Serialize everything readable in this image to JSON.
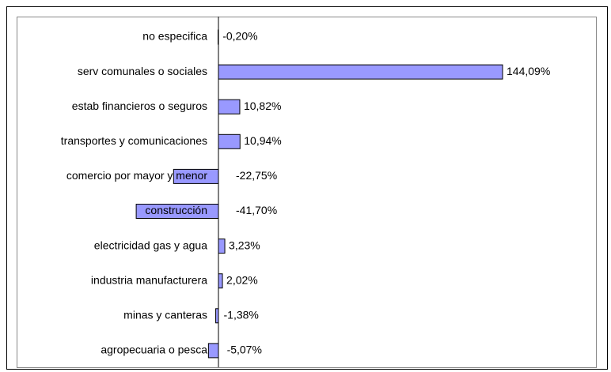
{
  "chart_data": {
    "type": "bar",
    "orientation": "horizontal",
    "categories": [
      "no especifica",
      "serv comunales o sociales",
      "estab financieros o seguros",
      "transportes y comunicaciones",
      "comercio por mayor y menor",
      "construcción",
      "electricidad gas y agua",
      "industria manufacturera",
      "minas y canteras",
      "agropecuaria o pesca"
    ],
    "values": [
      -0.2,
      144.09,
      10.82,
      10.94,
      -22.75,
      -41.7,
      3.23,
      2.02,
      -1.38,
      -5.07
    ],
    "value_labels": [
      "-0,20%",
      "144,09%",
      "10,82%",
      "10,94%",
      "-22,75%",
      "-41,70%",
      "3,23%",
      "2,02%",
      "-1,38%",
      "-5,07%"
    ],
    "color": "#9999ff"
  }
}
